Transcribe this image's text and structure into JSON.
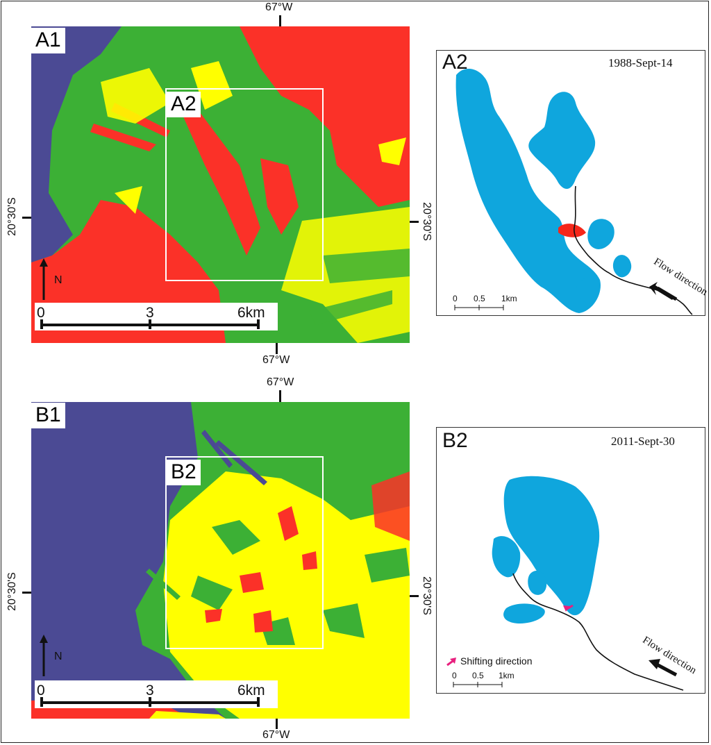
{
  "colors": {
    "water": "#4b4a94",
    "vegetation": "#3cb035",
    "bare": "#fb3128",
    "moist": "#ffff00",
    "lake": "#0fa6dd",
    "new_lake": "#f5271a",
    "shift_arrow": "#e8207e",
    "frame_box": "#ffffff"
  },
  "panelA1": {
    "label": "A1",
    "top_coord": "67°W",
    "bottom_coord": "67°W",
    "left_coord": "20°30'S",
    "right_coord": "20°30'S",
    "zoom_label": "A2",
    "north": "N",
    "scale": [
      "0",
      "3",
      "6km"
    ]
  },
  "panelA2": {
    "label": "A2",
    "date": "1988-Sept-14",
    "scale": [
      "0",
      "0.5",
      "1km"
    ],
    "flow": "Flow direction"
  },
  "panelB1": {
    "label": "B1",
    "top_coord": "67°W",
    "bottom_coord": "67°W",
    "left_coord": "20°30'S",
    "right_coord": "20°30'S",
    "zoom_label": "B2",
    "north": "N",
    "scale": [
      "0",
      "3",
      "6km"
    ]
  },
  "panelB2": {
    "label": "B2",
    "date": "2011-Sept-30",
    "scale": [
      "0",
      "0.5",
      "1km"
    ],
    "flow": "Flow direction",
    "legend": "Shifting direction"
  }
}
